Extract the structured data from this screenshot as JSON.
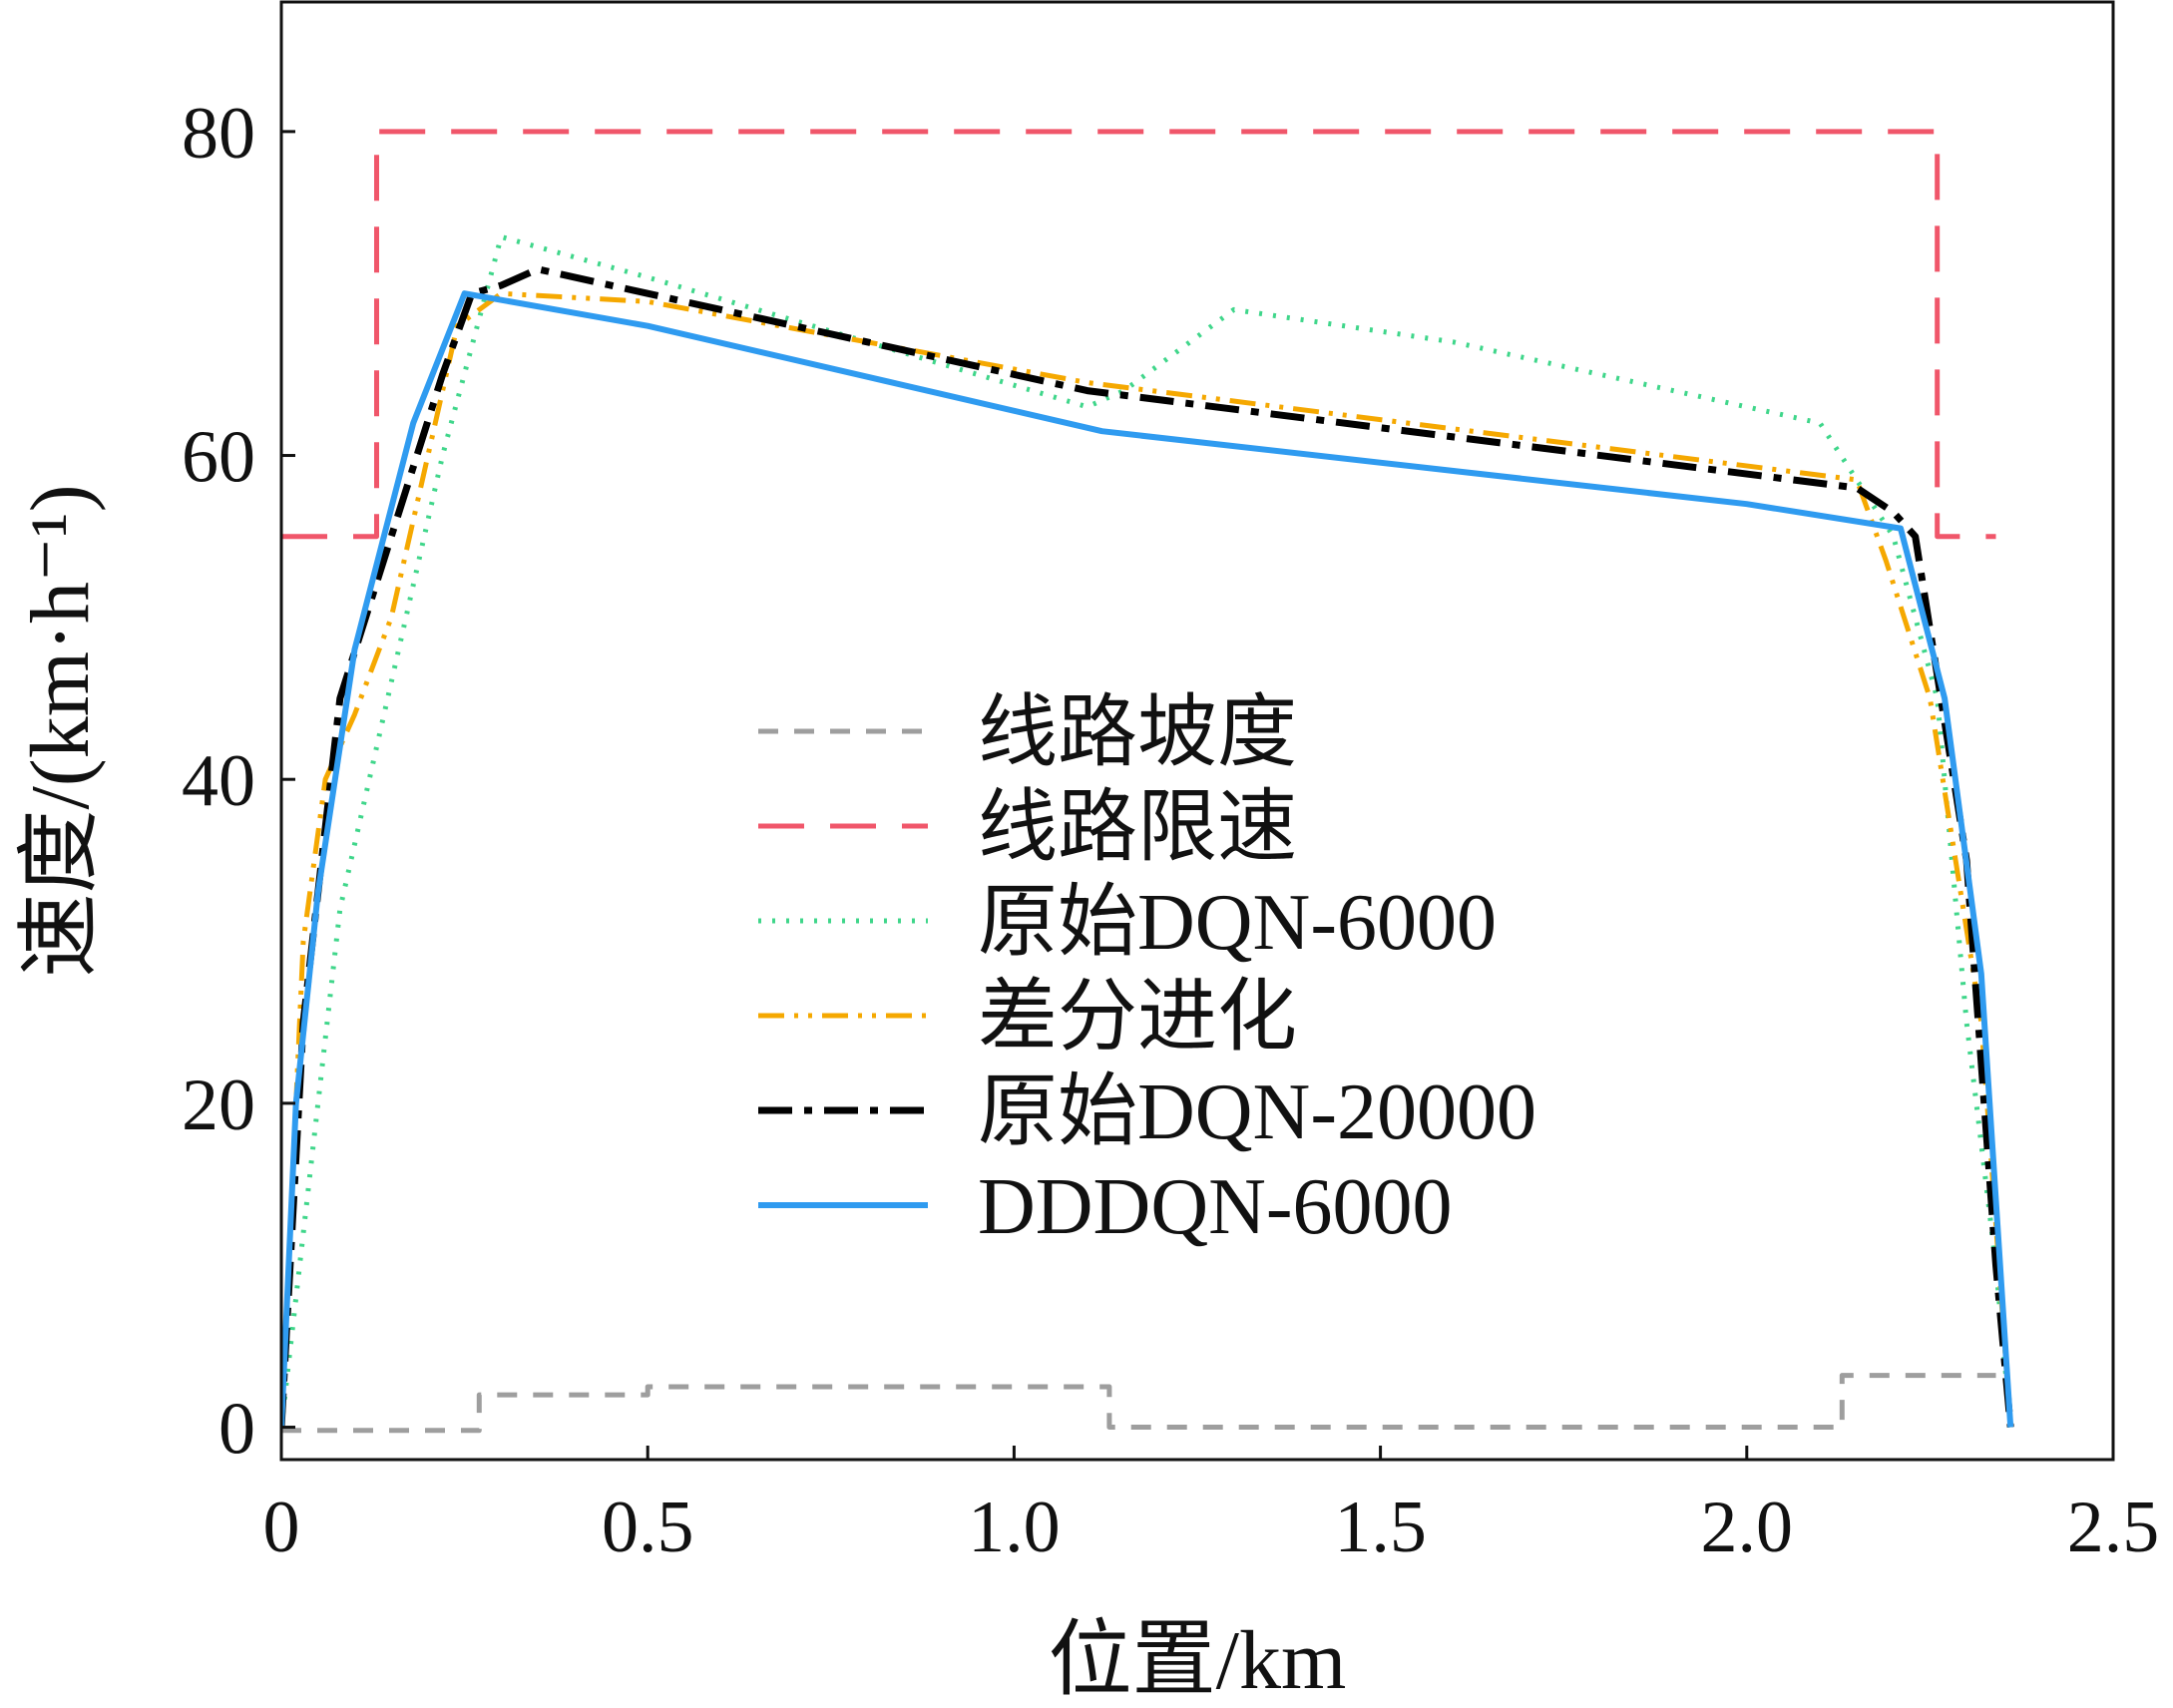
{
  "chart_data": {
    "type": "line",
    "title": "",
    "xlabel": "位置/km",
    "ylabel": "速度/(km·h⁻¹)",
    "xlim": [
      0,
      2.5
    ],
    "ylim": [
      -2,
      88
    ],
    "xticks": [
      0,
      0.5,
      1.0,
      1.5,
      2.0,
      2.5
    ],
    "xtick_labels": [
      "0",
      "0.5",
      "1.0",
      "1.5",
      "2.0",
      "2.5"
    ],
    "yticks": [
      0,
      20,
      40,
      60,
      80
    ],
    "ytick_labels": [
      "0",
      "20",
      "40",
      "60",
      "80"
    ],
    "grid": false,
    "legend_position": "center",
    "series": [
      {
        "name": "线路坡度",
        "color": "#9e9e9e",
        "dash": "short-dash",
        "x": [
          0,
          0.27,
          0.27,
          0.5,
          0.5,
          1.13,
          1.13,
          2.13,
          2.13,
          2.34
        ],
        "y": [
          -0.2,
          -0.2,
          2.0,
          2.0,
          2.5,
          2.5,
          0.0,
          0.0,
          3.2,
          3.2
        ]
      },
      {
        "name": "线路限速",
        "color": "#f0566a",
        "dash": "long-dash",
        "x": [
          0,
          0.13,
          0.13,
          2.26,
          2.26,
          2.34
        ],
        "y": [
          55,
          55,
          80,
          80,
          55,
          55
        ]
      },
      {
        "name": "原始DQN-6000",
        "color": "#3fd68a",
        "dash": "dotted",
        "x": [
          0,
          0.08,
          0.22,
          0.3,
          0.5,
          0.8,
          1.1,
          1.15,
          1.3,
          1.6,
          2.1,
          2.2,
          2.26,
          2.3,
          2.34,
          2.36
        ],
        "y": [
          0,
          32,
          60,
          73.5,
          71,
          67,
          63,
          64,
          69,
          67,
          62,
          55,
          45,
          25,
          10,
          0
        ]
      },
      {
        "name": "差分进化",
        "color": "#f5a800",
        "dash": "dash-dot-dot",
        "x": [
          0,
          0.03,
          0.06,
          0.1,
          0.15,
          0.24,
          0.3,
          0.5,
          1.1,
          2.15,
          2.19,
          2.25,
          2.32,
          2.36
        ],
        "y": [
          0,
          30,
          40,
          44,
          50,
          68,
          70,
          69.5,
          64.5,
          58.5,
          53.5,
          45,
          25,
          0
        ]
      },
      {
        "name": "原始DQN-20000",
        "color": "#000000",
        "dash": "dash-dot",
        "x": [
          0,
          0.03,
          0.08,
          0.15,
          0.22,
          0.26,
          0.3,
          0.35,
          0.5,
          1.1,
          2.15,
          2.2,
          2.23,
          2.3,
          2.34,
          2.36
        ],
        "y": [
          0,
          25,
          45,
          55,
          65,
          70,
          70.5,
          71.5,
          70,
          64,
          58,
          56.5,
          55,
          35,
          10,
          0
        ]
      },
      {
        "name": "DDDQN-6000",
        "color": "#2f9bf0",
        "dash": "solid",
        "x": [
          0,
          0.02,
          0.05,
          0.1,
          0.18,
          0.25,
          0.5,
          1.12,
          2.0,
          2.21,
          2.27,
          2.32,
          2.36
        ],
        "y": [
          0,
          20,
          33,
          48,
          62,
          70,
          68,
          61.5,
          57,
          55.5,
          45,
          28,
          0
        ]
      }
    ]
  }
}
